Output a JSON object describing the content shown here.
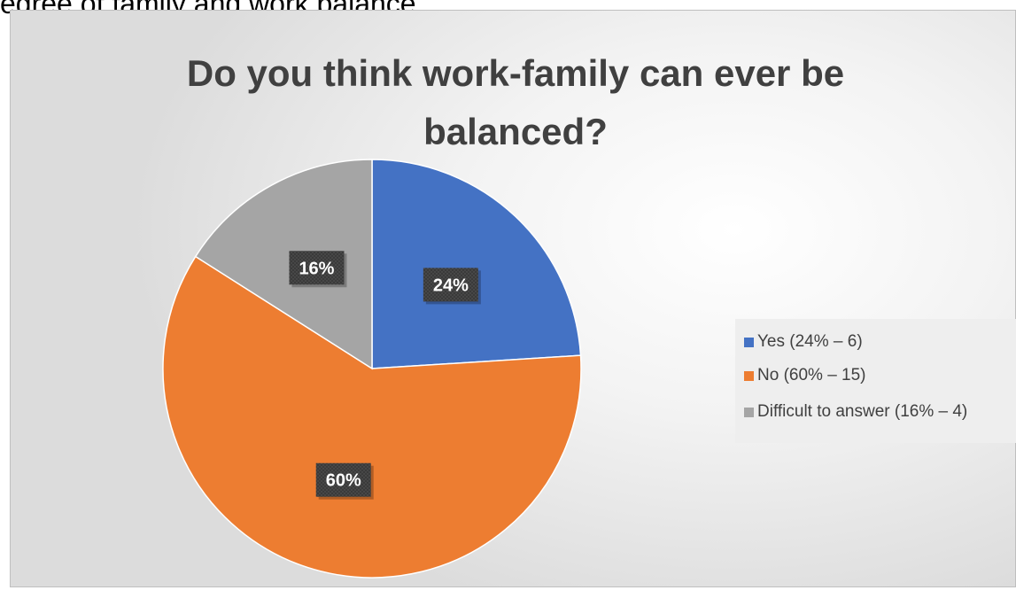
{
  "caption": "egree of family and work balance",
  "chart_data": {
    "type": "pie",
    "title": "Do you think work-family can ever be balanced?",
    "start_angle_deg": 0,
    "direction": "clockwise",
    "categories": [
      "Yes (24% – 6)",
      "No (60% – 15)",
      "Difficult to answer (16% – 4)"
    ],
    "values": [
      24,
      60,
      16
    ],
    "data_labels": [
      "24%",
      "60%",
      "16%"
    ],
    "colors": [
      "#4472c4",
      "#ed7d31",
      "#a5a5a5"
    ],
    "legend_position": "right"
  }
}
